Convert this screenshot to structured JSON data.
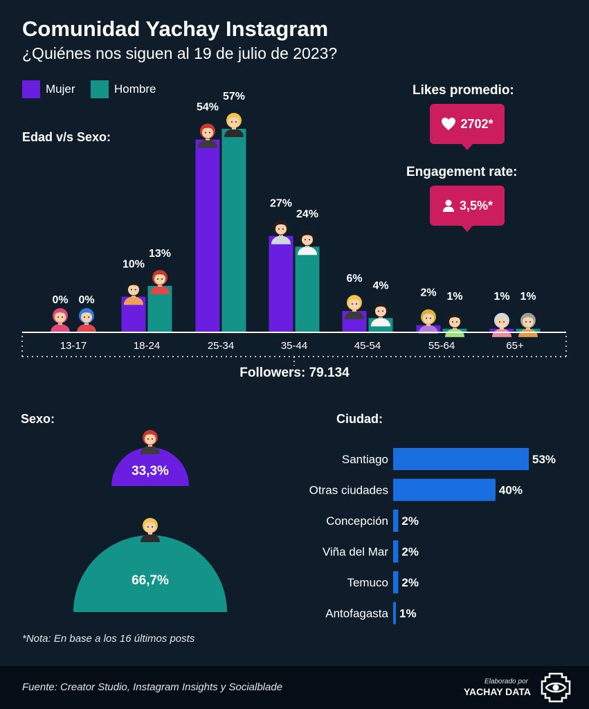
{
  "header": {
    "title": "Comunidad Yachay Instagram",
    "subtitle": "¿Quiénes nos siguen al 19 de julio de 2023?"
  },
  "legend": {
    "women": "Mujer",
    "men": "Hombre"
  },
  "sections": {
    "age": "Edad v/s Sexo:",
    "likes": "Likes promedio:",
    "engagement": "Engagement rate:",
    "sex": "Sexo:",
    "city": "Ciudad:"
  },
  "stats": {
    "likes_value": "2702*",
    "engagement_value": "3,5%*",
    "followers": "Followers: 79.134"
  },
  "colors": {
    "women": "#6a1ee0",
    "men": "#149489",
    "city": "#1a6fe0",
    "badge": "#cc1d5e",
    "background": "#0f1c2a"
  },
  "chart_data": [
    {
      "type": "bar",
      "title": "Edad v/s Sexo:",
      "categories": [
        "13-17",
        "18-24",
        "25-34",
        "35-44",
        "45-54",
        "55-64",
        "65+"
      ],
      "series": [
        {
          "name": "Mujer",
          "values": [
            0,
            10,
            54,
            27,
            6,
            2,
            1
          ],
          "labels": [
            "0%",
            "10%",
            "54%",
            "27%",
            "6%",
            "2%",
            "1%"
          ]
        },
        {
          "name": "Hombre",
          "values": [
            0,
            13,
            57,
            24,
            4,
            1,
            1
          ],
          "labels": [
            "0%",
            "13%",
            "57%",
            "24%",
            "4%",
            "1%",
            "1%"
          ]
        }
      ],
      "ylim": [
        0,
        57
      ]
    },
    {
      "type": "pie",
      "title": "Sexo:",
      "slices": [
        {
          "name": "Mujer",
          "value": 33.3,
          "label": "33,3%"
        },
        {
          "name": "Hombre",
          "value": 66.7,
          "label": "66,7%"
        }
      ]
    },
    {
      "type": "bar",
      "orientation": "horizontal",
      "title": "Ciudad:",
      "categories": [
        "Santiago",
        "Otras ciudades",
        "Concepción",
        "Viña del Mar",
        "Temuco",
        "Antofagasta"
      ],
      "values": [
        53,
        40,
        2,
        2,
        2,
        1
      ],
      "labels": [
        "53%",
        "40%",
        "2%",
        "2%",
        "2%",
        "1%"
      ],
      "xlim": [
        0,
        53
      ]
    }
  ],
  "footer": {
    "note": "*Nota: En base a los 16 últimos posts",
    "source": "Fuente: Creator Studio, Instagram Insights y Socialblade",
    "credit_small": "Elaborado por",
    "credit_brand": "YACHAY DATA"
  }
}
